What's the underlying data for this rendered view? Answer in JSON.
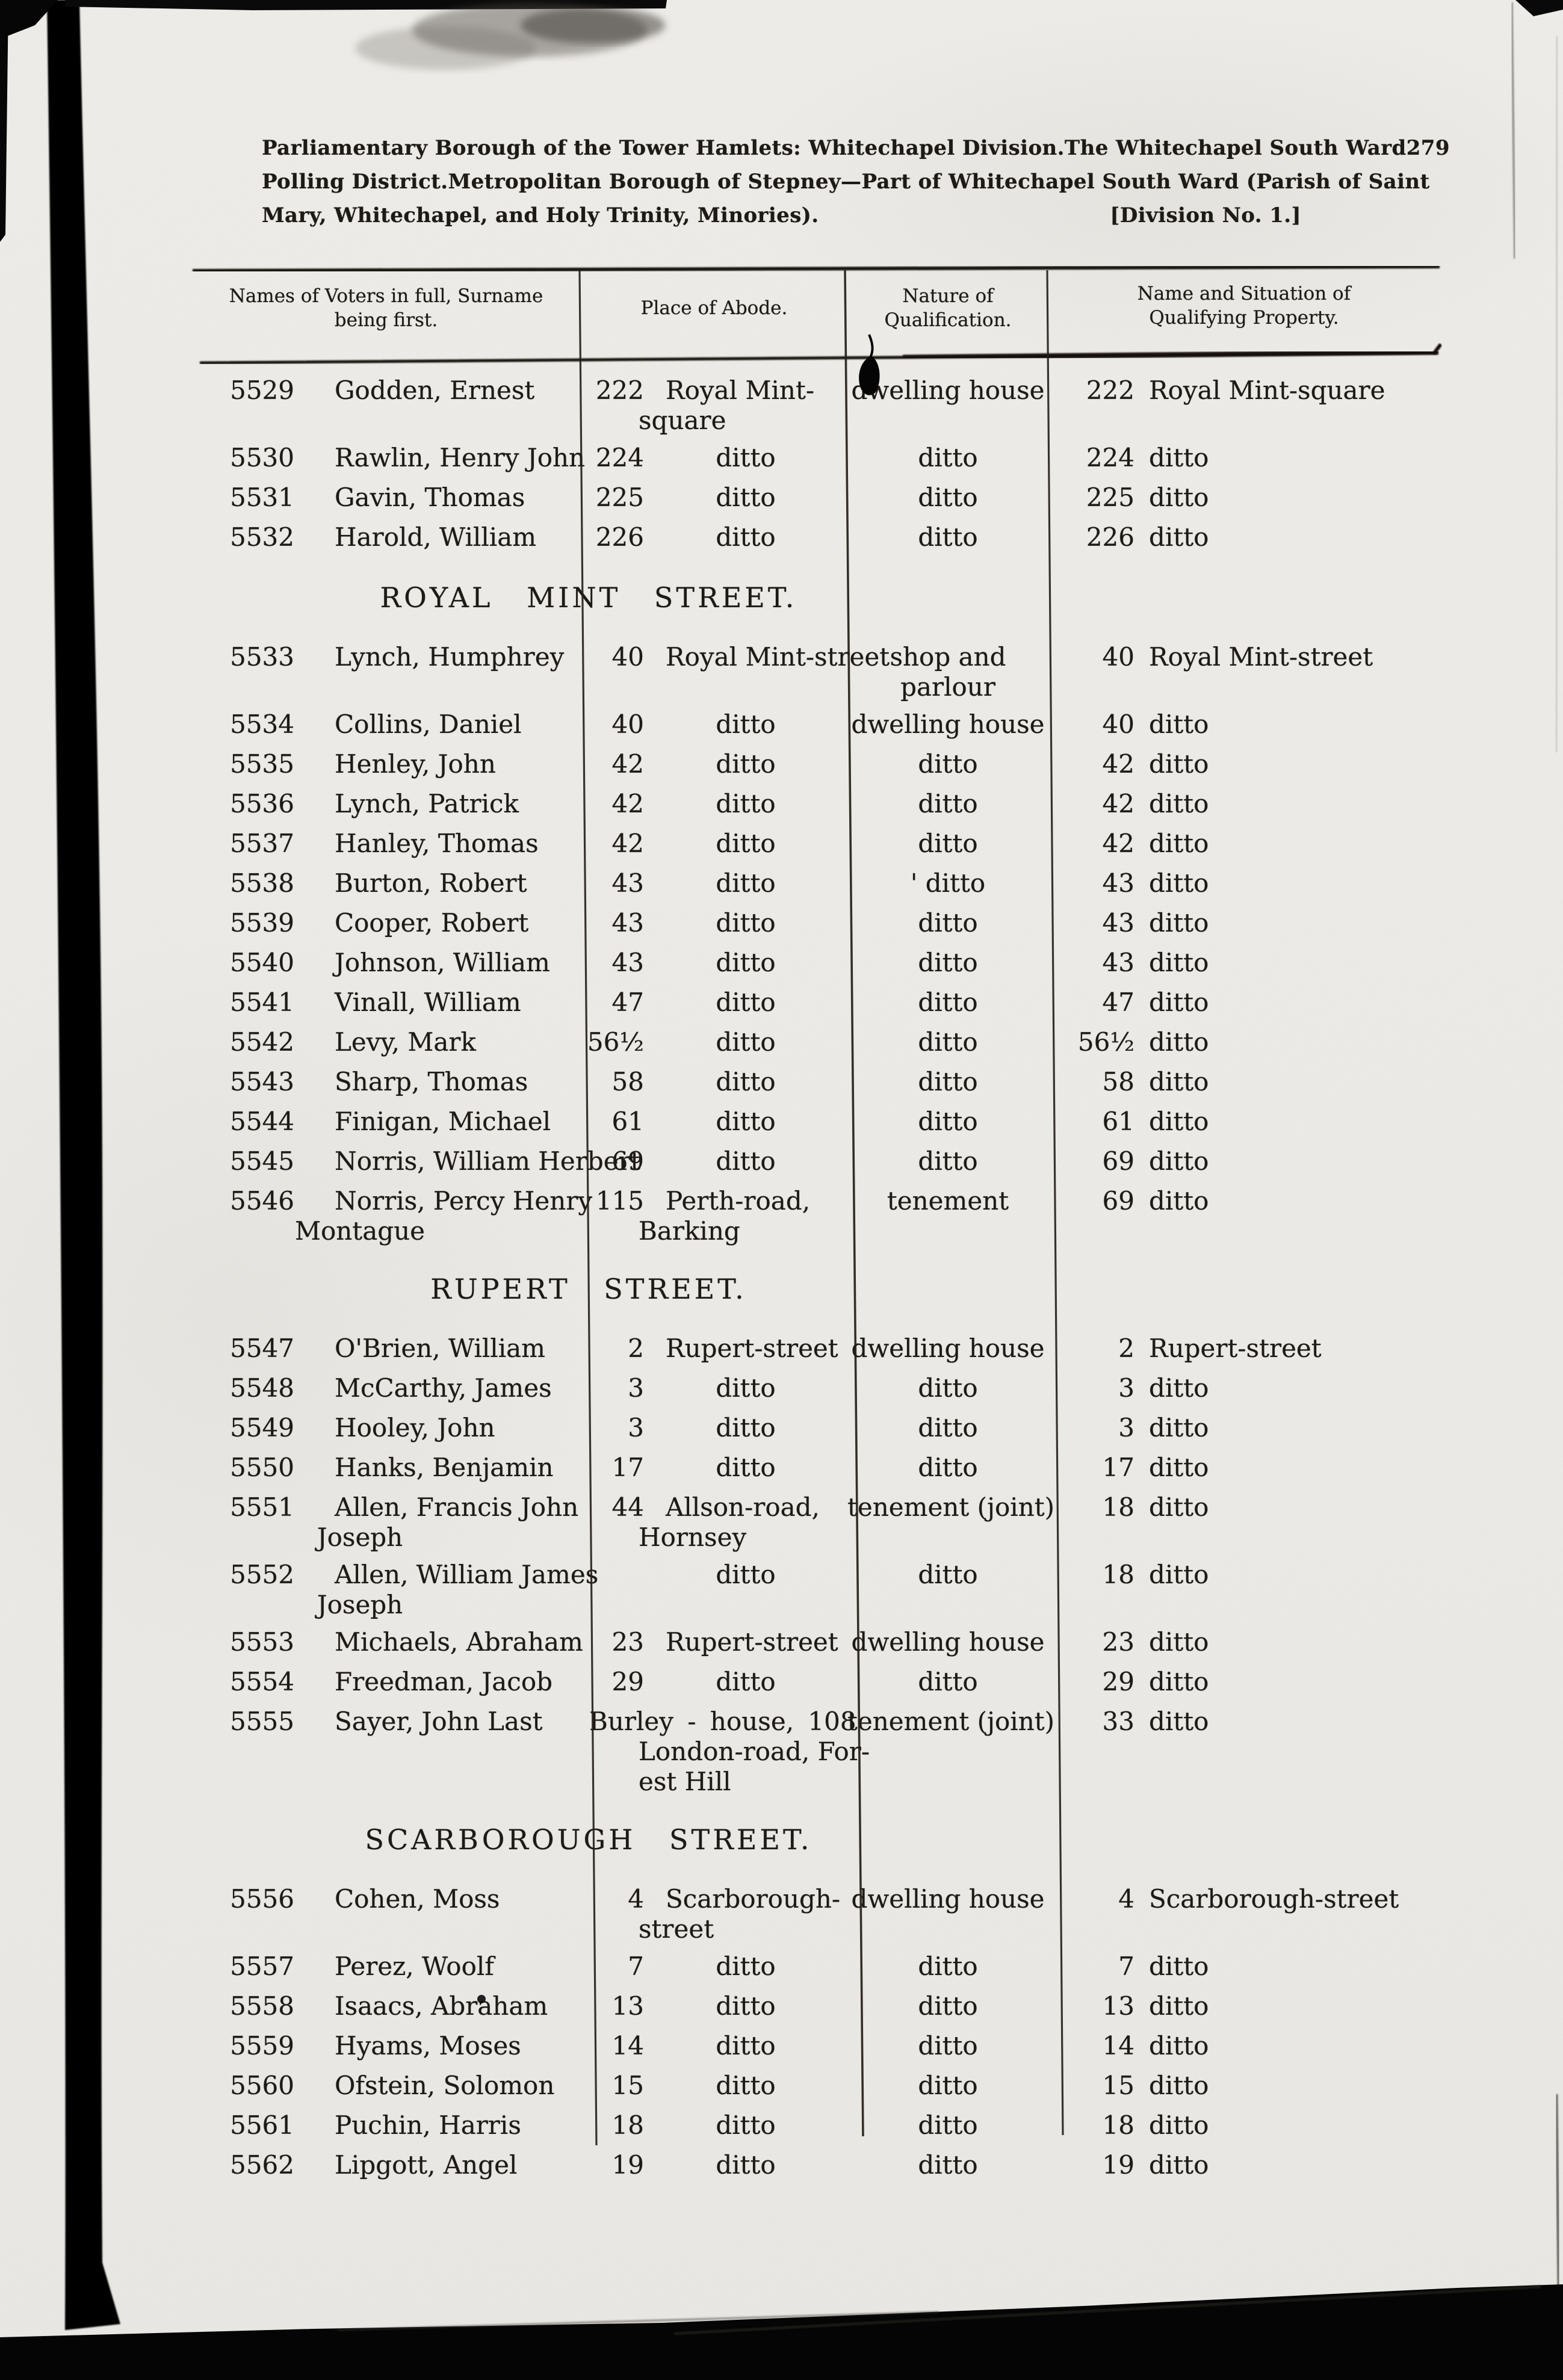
{
  "header": {
    "line1_left": "Parliamentary Borough of the Tower Hamlets:  Whitechapel Division.",
    "line1_mid": "The Whitechapel South Ward",
    "page_number": "279",
    "line2_left": "Polling District.",
    "line2_right": "Metropolitan Borough of Stepney—Part of Whitechapel South Ward (Parish of Saint",
    "line3_left": "Mary, Whitechapel, and Holy Trinity, Minories).",
    "line3_right": "[Division No. 1.]"
  },
  "table": {
    "columns": [
      {
        "lines": [
          "Names of Voters in full, Surname",
          "being first."
        ]
      },
      {
        "lines": [
          "Place of Abode."
        ]
      },
      {
        "lines": [
          "Nature of",
          "Qualification."
        ]
      },
      {
        "lines": [
          "Name and Situation of",
          "Qualifying Property."
        ]
      }
    ],
    "sections": [
      {
        "heading": null,
        "rows": [
          {
            "num": "5529",
            "name": [
              "Godden, Ernest"
            ],
            "abode_num": "222",
            "abode": [
              "Royal Mint-",
              "square"
            ],
            "qual": [
              "dwelling house"
            ],
            "prop_num": "222",
            "prop": "Royal Mint-square"
          },
          {
            "num": "5530",
            "name": [
              "Rawlin, Henry John"
            ],
            "abode_num": "224",
            "abode": [
              "ditto"
            ],
            "qual": [
              "ditto"
            ],
            "prop_num": "224",
            "prop": "ditto"
          },
          {
            "num": "5531",
            "name": [
              "Gavin, Thomas"
            ],
            "abode_num": "225",
            "abode": [
              "ditto"
            ],
            "qual": [
              "ditto"
            ],
            "prop_num": "225",
            "prop": "ditto"
          },
          {
            "num": "5532",
            "name": [
              "Harold, William"
            ],
            "abode_num": "226",
            "abode": [
              "ditto"
            ],
            "qual": [
              "ditto"
            ],
            "prop_num": "226",
            "prop": "ditto"
          }
        ]
      },
      {
        "heading": "ROYAL MINT STREET.",
        "rows": [
          {
            "num": "5533",
            "name": [
              "Lynch, Humphrey"
            ],
            "abode_num": "40",
            "abode": [
              "Royal Mint-street"
            ],
            "qual": [
              "shop and",
              "parlour"
            ],
            "prop_num": "40",
            "prop": "Royal Mint-street"
          },
          {
            "num": "5534",
            "name": [
              "Collins, Daniel"
            ],
            "abode_num": "40",
            "abode": [
              "ditto"
            ],
            "qual": [
              "dwelling house"
            ],
            "prop_num": "40",
            "prop": "ditto"
          },
          {
            "num": "5535",
            "name": [
              "Henley, John"
            ],
            "abode_num": "42",
            "abode": [
              "ditto"
            ],
            "qual": [
              "ditto"
            ],
            "prop_num": "42",
            "prop": "ditto"
          },
          {
            "num": "5536",
            "name": [
              "Lynch, Patrick"
            ],
            "abode_num": "42",
            "abode": [
              "ditto"
            ],
            "qual": [
              "ditto"
            ],
            "prop_num": "42",
            "prop": "ditto"
          },
          {
            "num": "5537",
            "name": [
              "Hanley, Thomas"
            ],
            "abode_num": "42",
            "abode": [
              "ditto"
            ],
            "qual": [
              "ditto"
            ],
            "prop_num": "42",
            "prop": "ditto"
          },
          {
            "num": "5538",
            "name": [
              "Burton, Robert"
            ],
            "abode_num": "43",
            "abode": [
              "ditto"
            ],
            "qual": [
              "' ditto"
            ],
            "prop_num": "43",
            "prop": "ditto"
          },
          {
            "num": "5539",
            "name": [
              "Cooper, Robert"
            ],
            "abode_num": "43",
            "abode": [
              "ditto"
            ],
            "qual": [
              "ditto"
            ],
            "prop_num": "43",
            "prop": "ditto"
          },
          {
            "num": "5540",
            "name": [
              "Johnson, William"
            ],
            "abode_num": "43",
            "abode": [
              "ditto"
            ],
            "qual": [
              "ditto"
            ],
            "prop_num": "43",
            "prop": "ditto"
          },
          {
            "num": "5541",
            "name": [
              "Vinall, William"
            ],
            "abode_num": "47",
            "abode": [
              "ditto"
            ],
            "qual": [
              "ditto"
            ],
            "prop_num": "47",
            "prop": "ditto"
          },
          {
            "num": "5542",
            "name": [
              "Levy, Mark"
            ],
            "abode_num": "56½",
            "abode": [
              "ditto"
            ],
            "qual": [
              "ditto"
            ],
            "prop_num": "56½",
            "prop": "ditto"
          },
          {
            "num": "5543",
            "name": [
              "Sharp, Thomas"
            ],
            "abode_num": "58",
            "abode": [
              "ditto"
            ],
            "qual": [
              "ditto"
            ],
            "prop_num": "58",
            "prop": "ditto"
          },
          {
            "num": "5544",
            "name": [
              "Finigan, Michael"
            ],
            "abode_num": "61",
            "abode": [
              "ditto"
            ],
            "qual": [
              "ditto"
            ],
            "prop_num": "61",
            "prop": "ditto"
          },
          {
            "num": "5545",
            "name": [
              "Norris, William Herbert"
            ],
            "abode_num": "69",
            "abode": [
              "ditto"
            ],
            "qual": [
              "ditto"
            ],
            "prop_num": "69",
            "prop": "ditto"
          },
          {
            "num": "5546",
            "name": [
              "Norris, Percy Henry",
              "Montague"
            ],
            "abode_num": "115",
            "abode": [
              "Perth-road,",
              "Barking"
            ],
            "qual": [
              "tenement"
            ],
            "prop_num": "69",
            "prop": "ditto"
          }
        ]
      },
      {
        "heading": "RUPERT STREET.",
        "rows": [
          {
            "num": "5547",
            "name": [
              "O'Brien, William"
            ],
            "abode_num": "2",
            "abode": [
              "Rupert-street"
            ],
            "qual": [
              "dwelling house"
            ],
            "prop_num": "2",
            "prop": "Rupert-street"
          },
          {
            "num": "5548",
            "name": [
              "McCarthy, James"
            ],
            "abode_num": "3",
            "abode": [
              "ditto"
            ],
            "qual": [
              "ditto"
            ],
            "prop_num": "3",
            "prop": "ditto"
          },
          {
            "num": "5549",
            "name": [
              "Hooley, John"
            ],
            "abode_num": "3",
            "abode": [
              "ditto"
            ],
            "qual": [
              "ditto"
            ],
            "prop_num": "3",
            "prop": "ditto"
          },
          {
            "num": "5550",
            "name": [
              "Hanks, Benjamin"
            ],
            "abode_num": "17",
            "abode": [
              "ditto"
            ],
            "qual": [
              "ditto"
            ],
            "prop_num": "17",
            "prop": "ditto"
          },
          {
            "num": "5551",
            "name": [
              "Allen, Francis John",
              "Joseph"
            ],
            "abode_num": "44",
            "abode": [
              "Allson-road,",
              "Hornsey"
            ],
            "qual": [
              "tenement (joint)"
            ],
            "prop_num": "18",
            "prop": "ditto"
          },
          {
            "num": "5552",
            "name": [
              "Allen, William James",
              "Joseph"
            ],
            "abode_num": "",
            "abode": [
              "ditto"
            ],
            "qual": [
              "ditto"
            ],
            "prop_num": "18",
            "prop": "ditto"
          },
          {
            "num": "5553",
            "name": [
              "Michaels, Abraham"
            ],
            "abode_num": "23",
            "abode": [
              "Rupert-street"
            ],
            "qual": [
              "dwelling house"
            ],
            "prop_num": "23",
            "prop": "ditto"
          },
          {
            "num": "5554",
            "name": [
              "Freedman, Jacob"
            ],
            "abode_num": "29",
            "abode": [
              "ditto"
            ],
            "qual": [
              "ditto"
            ],
            "prop_num": "29",
            "prop": "ditto"
          },
          {
            "num": "5555",
            "name": [
              "Sayer, John Last"
            ],
            "abode_num": null,
            "abode": [
              "Burley - house, 108",
              "London-road, For-",
              "est Hill"
            ],
            "qual": [
              "tenement (joint)"
            ],
            "prop_num": "33",
            "prop": "ditto"
          }
        ]
      },
      {
        "heading": "SCARBOROUGH STREET.",
        "rows": [
          {
            "num": "5556",
            "name": [
              "Cohen, Moss"
            ],
            "abode_num": "4",
            "abode": [
              "Scarborough-",
              "street"
            ],
            "qual": [
              "dwelling house"
            ],
            "prop_num": "4",
            "prop": "Scarborough-street"
          },
          {
            "num": "5557",
            "name": [
              "Perez, Woolf"
            ],
            "abode_num": "7",
            "abode": [
              "ditto"
            ],
            "qual": [
              "ditto"
            ],
            "prop_num": "7",
            "prop": "ditto"
          },
          {
            "num": "5558",
            "name": [
              "Isaacs, Abraham"
            ],
            "abode_num": "13",
            "abode": [
              "ditto"
            ],
            "qual": [
              "ditto"
            ],
            "prop_num": "13",
            "prop": "ditto"
          },
          {
            "num": "5559",
            "name": [
              "Hyams, Moses"
            ],
            "abode_num": "14",
            "abode": [
              "ditto"
            ],
            "qual": [
              "ditto"
            ],
            "prop_num": "14",
            "prop": "ditto"
          },
          {
            "num": "5560",
            "name": [
              "Ofstein, Solomon"
            ],
            "abode_num": "15",
            "abode": [
              "ditto"
            ],
            "qual": [
              "ditto"
            ],
            "prop_num": "15",
            "prop": "ditto"
          },
          {
            "num": "5561",
            "name": [
              "Puchin, Harris"
            ],
            "abode_num": "18",
            "abode": [
              "ditto"
            ],
            "qual": [
              "ditto"
            ],
            "prop_num": "18",
            "prop": "ditto"
          },
          {
            "num": "5562",
            "name": [
              "Lipgott, Angel"
            ],
            "abode_num": "19",
            "abode": [
              "ditto"
            ],
            "qual": [
              "ditto"
            ],
            "prop_num": "19",
            "prop": "ditto"
          }
        ]
      }
    ]
  }
}
